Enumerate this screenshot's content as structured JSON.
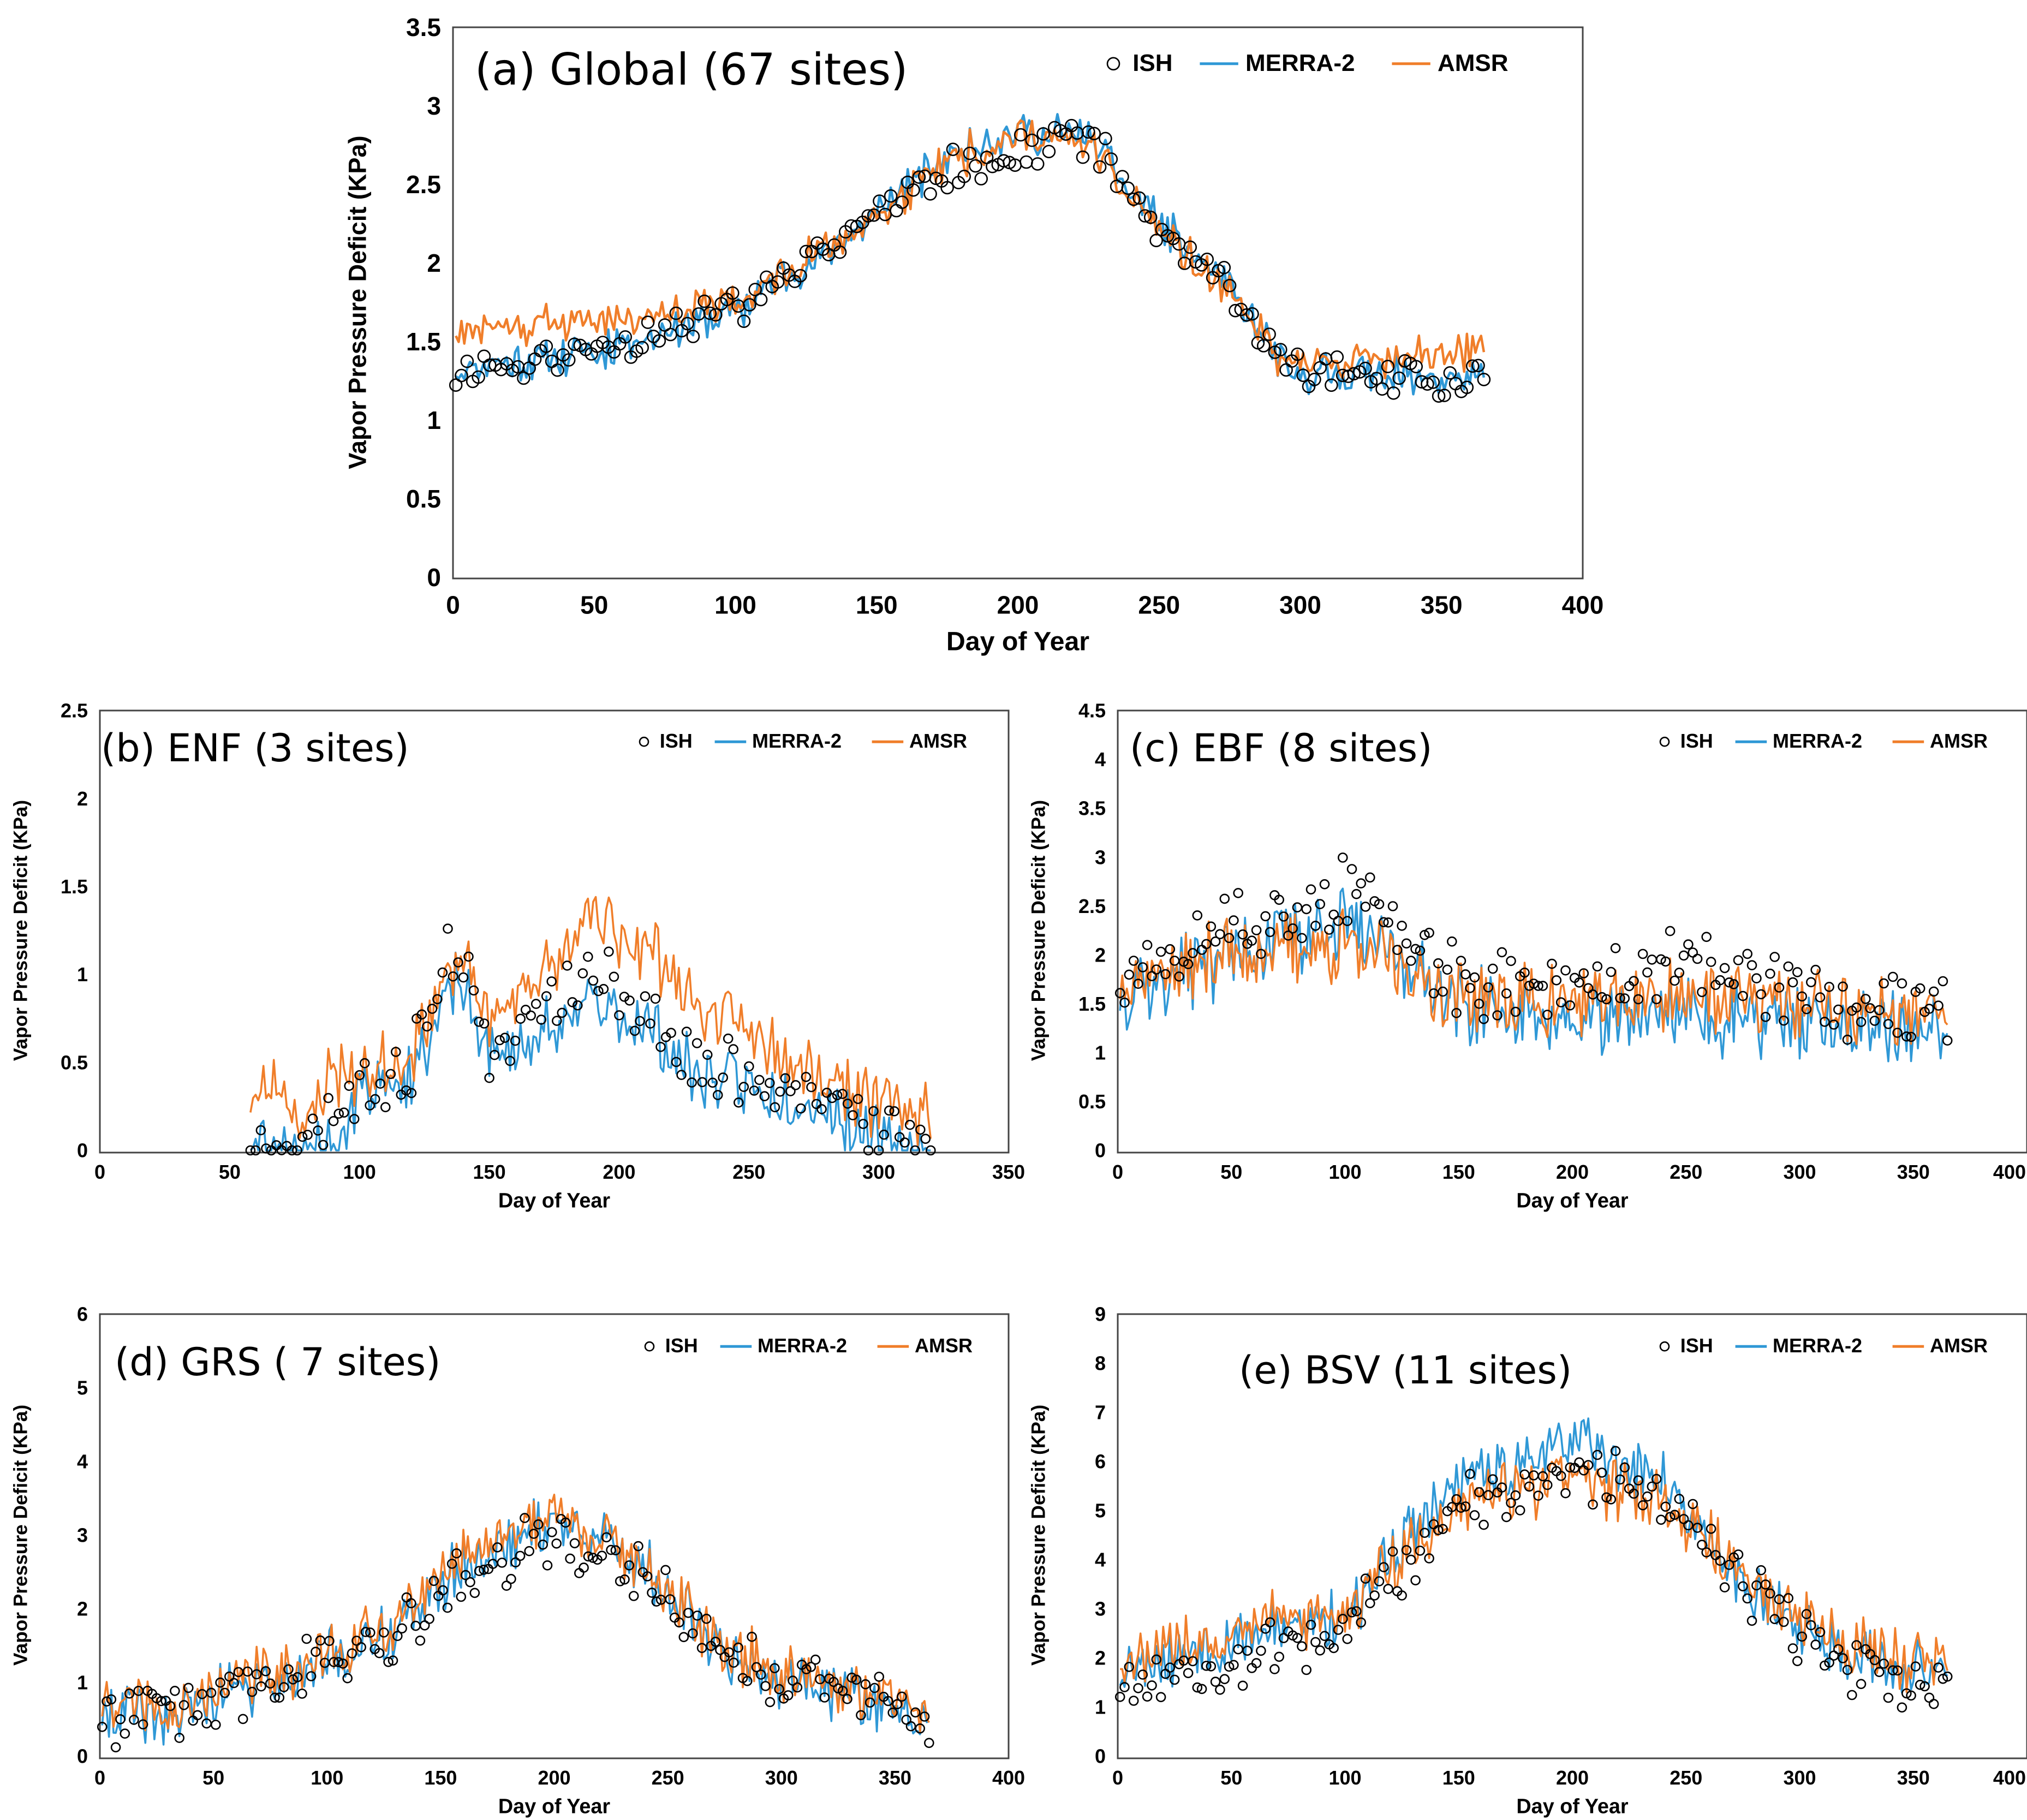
{
  "colors": {
    "ish": "#000000",
    "merra": "#2f98d6",
    "amsr": "#f07e2a",
    "frame": "#444444"
  },
  "legend": {
    "ish": "ISH",
    "merra": "MERRA-2",
    "amsr": "AMSR"
  },
  "chart_data": [
    {
      "id": "a",
      "type": "line",
      "title": "(a)  Global  (67  sites)",
      "xlabel": "Day of Year",
      "ylabel": "Vapor Pressure Deficit (KPa)",
      "xlim": [
        0,
        400
      ],
      "ylim": [
        0,
        3.5
      ],
      "xticks": [
        "0",
        "50",
        "100",
        "150",
        "200",
        "250",
        "300",
        "350",
        "400"
      ],
      "yticks": [
        "0",
        "0.5",
        "1",
        "1.5",
        "2",
        "2.5",
        "3",
        "3.5"
      ],
      "legend_position": "top-right",
      "day_range": [
        1,
        365
      ],
      "series": [
        {
          "name": "ISH",
          "style": "markers",
          "profile": [
            [
              1,
              1.3
            ],
            [
              40,
              1.4
            ],
            [
              100,
              1.7
            ],
            [
              150,
              2.3
            ],
            [
              175,
              2.6
            ],
            [
              200,
              2.7
            ],
            [
              225,
              2.8
            ],
            [
              250,
              2.2
            ],
            [
              275,
              1.8
            ],
            [
              295,
              1.3
            ],
            [
              330,
              1.3
            ],
            [
              365,
              1.2
            ]
          ]
        },
        {
          "name": "MERRA-2",
          "style": "line",
          "profile": [
            [
              1,
              1.35
            ],
            [
              40,
              1.4
            ],
            [
              100,
              1.7
            ],
            [
              150,
              2.3
            ],
            [
              175,
              2.7
            ],
            [
              200,
              2.85
            ],
            [
              225,
              2.8
            ],
            [
              250,
              2.25
            ],
            [
              275,
              1.85
            ],
            [
              295,
              1.3
            ],
            [
              330,
              1.3
            ],
            [
              365,
              1.25
            ]
          ]
        },
        {
          "name": "AMSR",
          "style": "line",
          "profile": [
            [
              1,
              1.6
            ],
            [
              40,
              1.6
            ],
            [
              100,
              1.75
            ],
            [
              150,
              2.3
            ],
            [
              175,
              2.65
            ],
            [
              200,
              2.8
            ],
            [
              225,
              2.75
            ],
            [
              250,
              2.2
            ],
            [
              275,
              1.8
            ],
            [
              295,
              1.35
            ],
            [
              330,
              1.4
            ],
            [
              365,
              1.45
            ]
          ]
        }
      ]
    },
    {
      "id": "b",
      "type": "line",
      "title": "(b)  ENF (3 sites)",
      "xlabel": "Day of Year",
      "ylabel": "Vapor Pressure Deficit (KPa)",
      "xlim": [
        0,
        350
      ],
      "ylim": [
        0,
        2.5
      ],
      "xticks": [
        "0",
        "50",
        "100",
        "150",
        "200",
        "250",
        "300",
        "350"
      ],
      "yticks": [
        "0",
        "0.5",
        "1",
        "1.5",
        "2",
        "2.5"
      ],
      "legend_position": "top-right",
      "day_range": [
        58,
        320
      ],
      "series": [
        {
          "name": "ISH",
          "style": "markers",
          "profile": [
            [
              58,
              0.02
            ],
            [
              85,
              0.05
            ],
            [
              100,
              0.4
            ],
            [
              120,
              0.5
            ],
            [
              135,
              1.2
            ],
            [
              150,
              0.6
            ],
            [
              170,
              0.8
            ],
            [
              190,
              1.0
            ],
            [
              210,
              0.8
            ],
            [
              230,
              0.5
            ],
            [
              260,
              0.4
            ],
            [
              285,
              0.3
            ],
            [
              300,
              0.05
            ],
            [
              320,
              0.02
            ]
          ]
        },
        {
          "name": "MERRA-2",
          "style": "line",
          "profile": [
            [
              58,
              0.0
            ],
            [
              90,
              0.0
            ],
            [
              100,
              0.35
            ],
            [
              120,
              0.45
            ],
            [
              138,
              1.0
            ],
            [
              150,
              0.5
            ],
            [
              170,
              0.65
            ],
            [
              190,
              0.85
            ],
            [
              210,
              0.7
            ],
            [
              230,
              0.45
            ],
            [
              260,
              0.3
            ],
            [
              285,
              0.2
            ],
            [
              300,
              0.03
            ],
            [
              320,
              0.02
            ]
          ]
        },
        {
          "name": "AMSR",
          "style": "line",
          "profile": [
            [
              58,
              0.3
            ],
            [
              70,
              0.35
            ],
            [
              80,
              0.05
            ],
            [
              85,
              0.4
            ],
            [
              100,
              0.45
            ],
            [
              120,
              0.55
            ],
            [
              138,
              1.1
            ],
            [
              150,
              0.75
            ],
            [
              170,
              1.0
            ],
            [
              190,
              1.3
            ],
            [
              210,
              1.15
            ],
            [
              230,
              0.85
            ],
            [
              260,
              0.6
            ],
            [
              285,
              0.4
            ],
            [
              300,
              0.25
            ],
            [
              320,
              0.25
            ]
          ]
        }
      ]
    },
    {
      "id": "c",
      "type": "line",
      "title": "(c)  EBF (8 sites)",
      "xlabel": "Day of Year",
      "ylabel": "Vapor Pressure Deficit (KPa)",
      "xlim": [
        0,
        400
      ],
      "ylim": [
        0,
        4.5
      ],
      "xticks": [
        "0",
        "50",
        "100",
        "150",
        "200",
        "250",
        "300",
        "350",
        "400"
      ],
      "yticks": [
        "0",
        "0.5",
        "1",
        "1.5",
        "2",
        "2.5",
        "3",
        "3.5",
        "4",
        "4.5"
      ],
      "legend_position": "top-right",
      "day_range": [
        1,
        365
      ],
      "series": [
        {
          "name": "ISH",
          "style": "markers",
          "profile": [
            [
              1,
              1.8
            ],
            [
              50,
              2.3
            ],
            [
              100,
              2.6
            ],
            [
              150,
              1.8
            ],
            [
              200,
              1.6
            ],
            [
              250,
              1.9
            ],
            [
              300,
              1.6
            ],
            [
              365,
              1.4
            ]
          ]
        },
        {
          "name": "MERRA-2",
          "style": "line",
          "profile": [
            [
              1,
              1.6
            ],
            [
              50,
              2.0
            ],
            [
              100,
              2.3
            ],
            [
              150,
              1.5
            ],
            [
              200,
              1.3
            ],
            [
              250,
              1.4
            ],
            [
              300,
              1.3
            ],
            [
              365,
              1.2
            ]
          ]
        },
        {
          "name": "AMSR",
          "style": "line",
          "profile": [
            [
              1,
              1.7
            ],
            [
              50,
              2.0
            ],
            [
              100,
              2.1
            ],
            [
              150,
              1.6
            ],
            [
              200,
              1.5
            ],
            [
              250,
              1.6
            ],
            [
              300,
              1.5
            ],
            [
              365,
              1.4
            ]
          ]
        }
      ]
    },
    {
      "id": "d",
      "type": "line",
      "title": "(d)  GRS ( 7 sites)",
      "xlabel": "Day of Year",
      "ylabel": "Vapor Pressure Deficit (KPa)",
      "xlim": [
        0,
        400
      ],
      "ylim": [
        0,
        6
      ],
      "xticks": [
        "0",
        "50",
        "100",
        "150",
        "200",
        "250",
        "300",
        "350",
        "400"
      ],
      "yticks": [
        "0",
        "1",
        "2",
        "3",
        "4",
        "5",
        "6"
      ],
      "legend_position": "top-right",
      "day_range": [
        1,
        365
      ],
      "series": [
        {
          "name": "ISH",
          "style": "markers",
          "profile": [
            [
              1,
              0.6
            ],
            [
              30,
              0.5
            ],
            [
              70,
              1.0
            ],
            [
              120,
              1.5
            ],
            [
              160,
              2.4
            ],
            [
              200,
              3.0
            ],
            [
              240,
              2.5
            ],
            [
              270,
              1.5
            ],
            [
              300,
              1.0
            ],
            [
              330,
              0.9
            ],
            [
              365,
              0.6
            ]
          ]
        },
        {
          "name": "MERRA-2",
          "style": "line",
          "profile": [
            [
              1,
              0.6
            ],
            [
              30,
              0.5
            ],
            [
              70,
              1.0
            ],
            [
              120,
              1.5
            ],
            [
              160,
              2.6
            ],
            [
              200,
              3.2
            ],
            [
              240,
              2.6
            ],
            [
              270,
              1.5
            ],
            [
              300,
              1.0
            ],
            [
              330,
              0.8
            ],
            [
              365,
              0.6
            ]
          ]
        },
        {
          "name": "AMSR",
          "style": "line",
          "profile": [
            [
              1,
              0.7
            ],
            [
              30,
              0.6
            ],
            [
              70,
              1.1
            ],
            [
              120,
              1.6
            ],
            [
              160,
              2.8
            ],
            [
              200,
              3.3
            ],
            [
              240,
              2.6
            ],
            [
              270,
              1.6
            ],
            [
              300,
              1.1
            ],
            [
              330,
              0.9
            ],
            [
              365,
              0.7
            ]
          ]
        }
      ]
    },
    {
      "id": "e",
      "type": "line",
      "title": "(e)  BSV (11 sites)",
      "xlabel": "Day of Year",
      "ylabel": "Vapor Pressure Deficit (KPa)",
      "xlim": [
        0,
        400
      ],
      "ylim": [
        0,
        9
      ],
      "xticks": [
        "0",
        "50",
        "100",
        "150",
        "200",
        "250",
        "300",
        "350",
        "400"
      ],
      "yticks": [
        "0",
        "1",
        "2",
        "3",
        "4",
        "5",
        "6",
        "7",
        "8",
        "9"
      ],
      "legend_position": "top-right",
      "day_range": [
        1,
        365
      ],
      "series": [
        {
          "name": "ISH",
          "style": "markers",
          "profile": [
            [
              1,
              1.5
            ],
            [
              50,
              2.0
            ],
            [
              100,
              2.6
            ],
            [
              150,
              5.0
            ],
            [
              200,
              5.8
            ],
            [
              240,
              5.3
            ],
            [
              280,
              3.2
            ],
            [
              320,
              2.0
            ],
            [
              365,
              1.3
            ]
          ]
        },
        {
          "name": "MERRA-2",
          "style": "line",
          "profile": [
            [
              1,
              1.7
            ],
            [
              50,
              2.3
            ],
            [
              100,
              2.9
            ],
            [
              150,
              5.6
            ],
            [
              200,
              6.4
            ],
            [
              240,
              5.6
            ],
            [
              280,
              3.3
            ],
            [
              320,
              2.1
            ],
            [
              365,
              1.5
            ]
          ]
        },
        {
          "name": "AMSR",
          "style": "line",
          "profile": [
            [
              1,
              2.0
            ],
            [
              50,
              2.5
            ],
            [
              100,
              3.0
            ],
            [
              150,
              5.1
            ],
            [
              200,
              5.7
            ],
            [
              240,
              5.2
            ],
            [
              280,
              3.4
            ],
            [
              320,
              2.3
            ],
            [
              365,
              1.8
            ]
          ]
        }
      ]
    }
  ]
}
